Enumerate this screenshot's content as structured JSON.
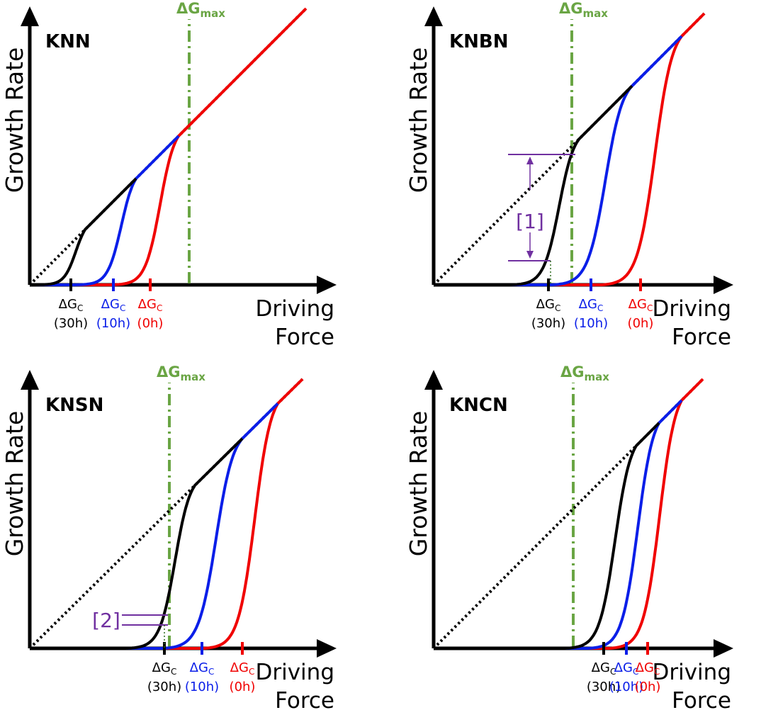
{
  "colors": {
    "black": "#000000",
    "blue": "#0a1ee8",
    "red": "#f00000",
    "green": "#6aa544",
    "purple": "#7030a0"
  },
  "symbols": {
    "delta": "ΔG",
    "c_sub": "C",
    "max_sub": "max"
  },
  "panels": [
    {
      "id": "knn",
      "title": "KNN",
      "ylabel": "Growth Rate",
      "xlabel_line1": "Driving",
      "xlabel_line2": "Force",
      "gmax_x": 225,
      "crit": {
        "black": 58,
        "blue": 118,
        "red": 170
      },
      "kinks": [
        {
          "x": 78,
          "k": 0.38
        },
        {
          "x": 150,
          "k": 0.61
        },
        {
          "x": 210,
          "k": 0.82
        }
      ],
      "ticks": [
        {
          "label": "(30h)",
          "color": "black"
        },
        {
          "label": "(10h)",
          "color": "blue"
        },
        {
          "label": "(0h)",
          "color": "red"
        }
      ],
      "annotation": null
    },
    {
      "id": "knbn",
      "title": "KNBN",
      "ylabel": "Growth Rate",
      "xlabel_line1": "Driving",
      "xlabel_line2": "Force",
      "gmax_x": 195,
      "crit": {
        "black": 162,
        "blue": 222,
        "red": 292
      },
      "kinks": [
        {
          "x": 205,
          "k": 0.64
        },
        {
          "x": 280,
          "k": 0.86
        },
        {
          "x": 350,
          "k": 1.0
        }
      ],
      "ticks": [
        {
          "label": "(30h)",
          "color": "black"
        },
        {
          "label": "(10h)",
          "color": "blue"
        },
        {
          "label": "(0h)",
          "color": "red"
        }
      ],
      "annotation": {
        "label": "[1]"
      }
    },
    {
      "id": "knsn",
      "title": "KNSN",
      "ylabel": "Growth Rate",
      "xlabel_line1": "Driving",
      "xlabel_line2": "Force",
      "gmax_x": 197,
      "crit": {
        "black": 190,
        "blue": 243,
        "red": 300
      },
      "kinks": [
        {
          "x": 233,
          "k": 0.69
        },
        {
          "x": 300,
          "k": 0.89
        },
        {
          "x": 350,
          "k": 1.0
        }
      ],
      "ticks": [
        {
          "label": "(30h)",
          "color": "black"
        },
        {
          "label": "(10h)",
          "color": "blue"
        },
        {
          "label": "(0h)",
          "color": "red"
        }
      ],
      "annotation": {
        "label": "[2]"
      }
    },
    {
      "id": "kncn",
      "title": "KNCN",
      "ylabel": "Growth Rate",
      "xlabel_line1": "Driving",
      "xlabel_line2": "Force",
      "gmax_x": 197,
      "crit": {
        "black": 240,
        "blue": 272,
        "red": 302
      },
      "kinks": [
        {
          "x": 286,
          "k": 0.82
        },
        {
          "x": 318,
          "k": 0.9
        },
        {
          "x": 350,
          "k": 1.0
        }
      ],
      "ticks": [
        {
          "label": "(30h)",
          "color": "black"
        },
        {
          "label": "(10h)",
          "color": "blue"
        },
        {
          "label": "(0h)",
          "color": "red"
        }
      ],
      "annotation": null
    }
  ]
}
